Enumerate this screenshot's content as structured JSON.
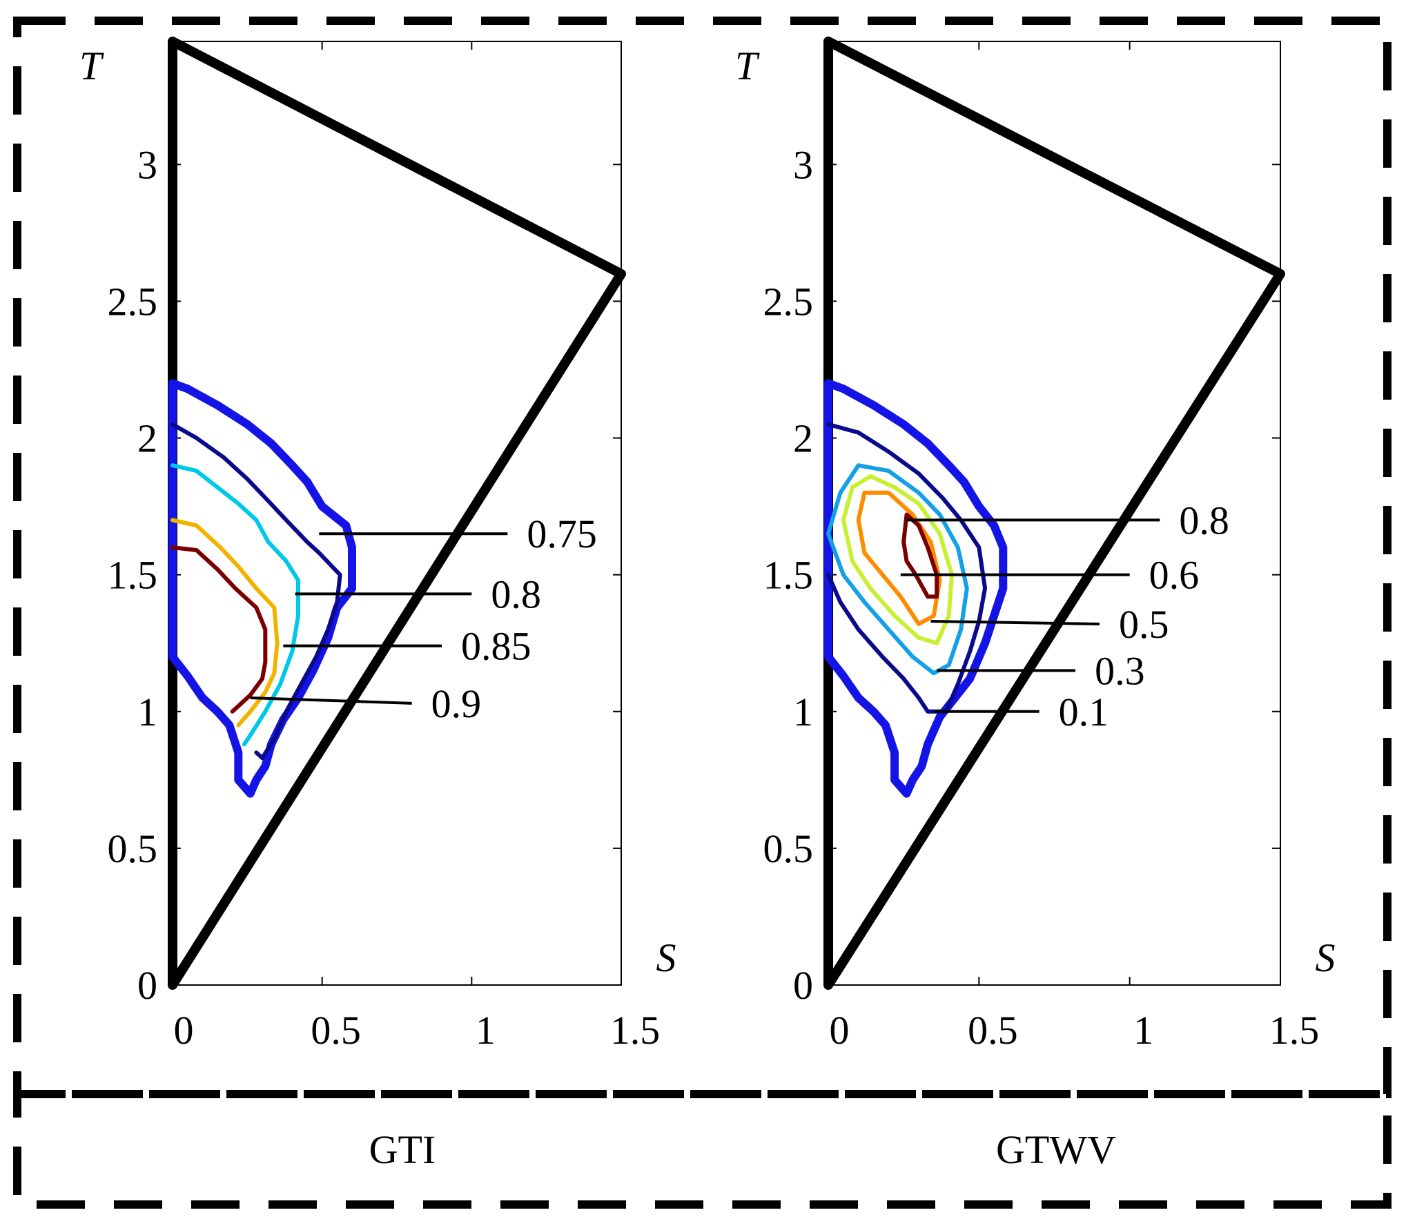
{
  "chart_data": [
    {
      "type": "contour",
      "caption": "GTI",
      "xlabel": "S",
      "ylabel": "T",
      "xlim": [
        0,
        1.5
      ],
      "ylim": [
        0,
        3.45
      ],
      "xticks": [
        "0",
        "0.5",
        "1",
        "1.5"
      ],
      "yticks": [
        "0",
        "0.5",
        "1",
        "1.5",
        "2",
        "2.5",
        "3"
      ],
      "boundary": [
        [
          0,
          0
        ],
        [
          1.5,
          2.6
        ],
        [
          0,
          3.45
        ]
      ],
      "levels": [
        {
          "label": "0.75",
          "color": "#0a0a8c",
          "leader_from": [
            0.49,
            1.65
          ],
          "leader_to": [
            1.12,
            1.65
          ]
        },
        {
          "label": "0.8",
          "color": "#00c8e8",
          "leader_from": [
            0.41,
            1.43
          ],
          "leader_to": [
            1.0,
            1.43
          ]
        },
        {
          "label": "0.85",
          "color": "#f0b400",
          "leader_from": [
            0.37,
            1.24
          ],
          "leader_to": [
            0.9,
            1.24
          ]
        },
        {
          "label": "0.9",
          "color": "#7a0000",
          "leader_from": [
            0.26,
            1.05
          ],
          "leader_to": [
            0.8,
            1.03
          ]
        }
      ],
      "outer_color": "#1414e6",
      "contours": [
        {
          "color": "#1414e6",
          "width": "thick",
          "points": [
            [
              0,
              2.2
            ],
            [
              0.05,
              2.18
            ],
            [
              0.15,
              2.12
            ],
            [
              0.25,
              2.05
            ],
            [
              0.33,
              1.98
            ],
            [
              0.4,
              1.9
            ],
            [
              0.45,
              1.84
            ],
            [
              0.5,
              1.75
            ],
            [
              0.58,
              1.68
            ],
            [
              0.6,
              1.6
            ],
            [
              0.6,
              1.45
            ],
            [
              0.55,
              1.38
            ],
            [
              0.52,
              1.27
            ],
            [
              0.47,
              1.15
            ],
            [
              0.42,
              1.05
            ],
            [
              0.37,
              0.97
            ],
            [
              0.33,
              0.88
            ],
            [
              0.31,
              0.8
            ],
            [
              0.28,
              0.75
            ],
            [
              0.26,
              0.7
            ],
            [
              0.22,
              0.75
            ],
            [
              0.22,
              0.85
            ],
            [
              0.19,
              0.95
            ],
            [
              0.15,
              1.0
            ],
            [
              0.1,
              1.05
            ],
            [
              0.05,
              1.13
            ],
            [
              0,
              1.2
            ],
            [
              0,
              2.2
            ]
          ]
        },
        {
          "color": "#0a0a8c",
          "points": [
            [
              0,
              2.05
            ],
            [
              0.08,
              2.0
            ],
            [
              0.17,
              1.93
            ],
            [
              0.25,
              1.85
            ],
            [
              0.32,
              1.77
            ],
            [
              0.38,
              1.7
            ],
            [
              0.45,
              1.62
            ],
            [
              0.49,
              1.58
            ],
            [
              0.56,
              1.5
            ],
            [
              0.55,
              1.4
            ],
            [
              0.52,
              1.3
            ],
            [
              0.48,
              1.2
            ],
            [
              0.43,
              1.1
            ],
            [
              0.38,
              1.0
            ],
            [
              0.34,
              0.9
            ],
            [
              0.3,
              0.83
            ],
            [
              0.28,
              0.85
            ]
          ]
        },
        {
          "color": "#00c8e8",
          "points": [
            [
              0,
              1.9
            ],
            [
              0.08,
              1.88
            ],
            [
              0.15,
              1.82
            ],
            [
              0.22,
              1.76
            ],
            [
              0.28,
              1.7
            ],
            [
              0.32,
              1.62
            ],
            [
              0.38,
              1.55
            ],
            [
              0.42,
              1.48
            ],
            [
              0.42,
              1.35
            ],
            [
              0.4,
              1.22
            ],
            [
              0.36,
              1.1
            ],
            [
              0.31,
              1.0
            ],
            [
              0.27,
              0.93
            ],
            [
              0.24,
              0.88
            ]
          ]
        },
        {
          "color": "#f0b400",
          "points": [
            [
              0,
              1.7
            ],
            [
              0.08,
              1.68
            ],
            [
              0.16,
              1.6
            ],
            [
              0.22,
              1.53
            ],
            [
              0.28,
              1.45
            ],
            [
              0.34,
              1.38
            ],
            [
              0.35,
              1.25
            ],
            [
              0.34,
              1.14
            ],
            [
              0.31,
              1.07
            ],
            [
              0.26,
              1.0
            ],
            [
              0.22,
              0.95
            ]
          ]
        },
        {
          "color": "#7a0000",
          "points": [
            [
              0,
              1.6
            ],
            [
              0.08,
              1.59
            ],
            [
              0.15,
              1.52
            ],
            [
              0.21,
              1.45
            ],
            [
              0.28,
              1.38
            ],
            [
              0.31,
              1.3
            ],
            [
              0.31,
              1.18
            ],
            [
              0.3,
              1.12
            ],
            [
              0.26,
              1.06
            ],
            [
              0.2,
              1.0
            ]
          ]
        }
      ]
    },
    {
      "type": "contour",
      "caption": "GTWV",
      "xlabel": "S",
      "ylabel": "T",
      "xlim": [
        0,
        1.5
      ],
      "ylim": [
        0,
        3.45
      ],
      "xticks": [
        "0",
        "0.5",
        "1",
        "1.5"
      ],
      "yticks": [
        "0",
        "0.5",
        "1",
        "1.5",
        "2",
        "2.5",
        "3"
      ],
      "boundary": [
        [
          0,
          0
        ],
        [
          1.5,
          2.6
        ],
        [
          0,
          3.45
        ]
      ],
      "levels": [
        {
          "label": "0.8",
          "color": "#7a0000",
          "leader_from": [
            0.26,
            1.7
          ],
          "leader_to": [
            1.1,
            1.7
          ]
        },
        {
          "label": "0.6",
          "color": "#ff8c00",
          "leader_from": [
            0.24,
            1.5
          ],
          "leader_to": [
            1.0,
            1.5
          ]
        },
        {
          "label": "0.5",
          "color": "#c8f032",
          "leader_from": [
            0.34,
            1.33
          ],
          "leader_to": [
            0.9,
            1.32
          ]
        },
        {
          "label": "0.3",
          "color": "#14a0e6",
          "leader_from": [
            0.36,
            1.15
          ],
          "leader_to": [
            0.82,
            1.15
          ]
        },
        {
          "label": "0.1",
          "color": "#0a0a8c",
          "leader_from": [
            0.35,
            1.0
          ],
          "leader_to": [
            0.7,
            1.0
          ]
        }
      ],
      "outer_color": "#1414e6",
      "contours": [
        {
          "color": "#1414e6",
          "width": "thick",
          "points": [
            [
              0,
              2.2
            ],
            [
              0.05,
              2.18
            ],
            [
              0.15,
              2.12
            ],
            [
              0.25,
              2.05
            ],
            [
              0.33,
              1.98
            ],
            [
              0.4,
              1.9
            ],
            [
              0.45,
              1.84
            ],
            [
              0.5,
              1.75
            ],
            [
              0.55,
              1.68
            ],
            [
              0.58,
              1.6
            ],
            [
              0.58,
              1.45
            ],
            [
              0.55,
              1.35
            ],
            [
              0.52,
              1.25
            ],
            [
              0.47,
              1.12
            ],
            [
              0.42,
              1.05
            ],
            [
              0.37,
              0.98
            ],
            [
              0.33,
              0.88
            ],
            [
              0.31,
              0.8
            ],
            [
              0.28,
              0.75
            ],
            [
              0.26,
              0.7
            ],
            [
              0.22,
              0.75
            ],
            [
              0.22,
              0.85
            ],
            [
              0.19,
              0.95
            ],
            [
              0.15,
              1.0
            ],
            [
              0.1,
              1.05
            ],
            [
              0.05,
              1.13
            ],
            [
              0,
              1.2
            ],
            [
              0,
              2.2
            ]
          ]
        },
        {
          "color": "#0a0a8c",
          "points": [
            [
              0,
              2.05
            ],
            [
              0.1,
              2.02
            ],
            [
              0.2,
              1.95
            ],
            [
              0.3,
              1.87
            ],
            [
              0.38,
              1.78
            ],
            [
              0.44,
              1.7
            ],
            [
              0.5,
              1.6
            ],
            [
              0.52,
              1.45
            ],
            [
              0.5,
              1.33
            ],
            [
              0.47,
              1.22
            ],
            [
              0.43,
              1.1
            ],
            [
              0.39,
              1.0
            ],
            [
              0.33,
              1.0
            ],
            [
              0.3,
              1.05
            ],
            [
              0.25,
              1.12
            ],
            [
              0.18,
              1.2
            ],
            [
              0.1,
              1.3
            ],
            [
              0.04,
              1.4
            ],
            [
              0,
              1.5
            ]
          ]
        },
        {
          "color": "#14a0e6",
          "points": [
            [
              0,
              1.65
            ],
            [
              0.04,
              1.8
            ],
            [
              0.1,
              1.9
            ],
            [
              0.2,
              1.88
            ],
            [
              0.3,
              1.8
            ],
            [
              0.37,
              1.72
            ],
            [
              0.43,
              1.6
            ],
            [
              0.46,
              1.45
            ],
            [
              0.44,
              1.3
            ],
            [
              0.4,
              1.17
            ],
            [
              0.35,
              1.14
            ],
            [
              0.28,
              1.2
            ],
            [
              0.2,
              1.3
            ],
            [
              0.12,
              1.4
            ],
            [
              0.05,
              1.5
            ],
            [
              0,
              1.65
            ]
          ]
        },
        {
          "color": "#c8f032",
          "points": [
            [
              0.05,
              1.7
            ],
            [
              0.08,
              1.82
            ],
            [
              0.14,
              1.86
            ],
            [
              0.22,
              1.82
            ],
            [
              0.3,
              1.76
            ],
            [
              0.37,
              1.65
            ],
            [
              0.41,
              1.5
            ],
            [
              0.4,
              1.35
            ],
            [
              0.36,
              1.25
            ],
            [
              0.3,
              1.27
            ],
            [
              0.22,
              1.35
            ],
            [
              0.14,
              1.45
            ],
            [
              0.08,
              1.55
            ],
            [
              0.05,
              1.7
            ]
          ]
        },
        {
          "color": "#ff8c00",
          "points": [
            [
              0.1,
              1.7
            ],
            [
              0.12,
              1.8
            ],
            [
              0.2,
              1.8
            ],
            [
              0.28,
              1.72
            ],
            [
              0.34,
              1.62
            ],
            [
              0.37,
              1.48
            ],
            [
              0.35,
              1.35
            ],
            [
              0.3,
              1.32
            ],
            [
              0.24,
              1.42
            ],
            [
              0.18,
              1.5
            ],
            [
              0.12,
              1.58
            ],
            [
              0.1,
              1.7
            ]
          ]
        },
        {
          "color": "#7a0000",
          "points": [
            [
              0.26,
              1.72
            ],
            [
              0.3,
              1.68
            ],
            [
              0.33,
              1.6
            ],
            [
              0.36,
              1.5
            ],
            [
              0.36,
              1.42
            ],
            [
              0.33,
              1.42
            ],
            [
              0.29,
              1.5
            ],
            [
              0.26,
              1.55
            ],
            [
              0.25,
              1.62
            ],
            [
              0.26,
              1.72
            ]
          ]
        }
      ]
    }
  ]
}
